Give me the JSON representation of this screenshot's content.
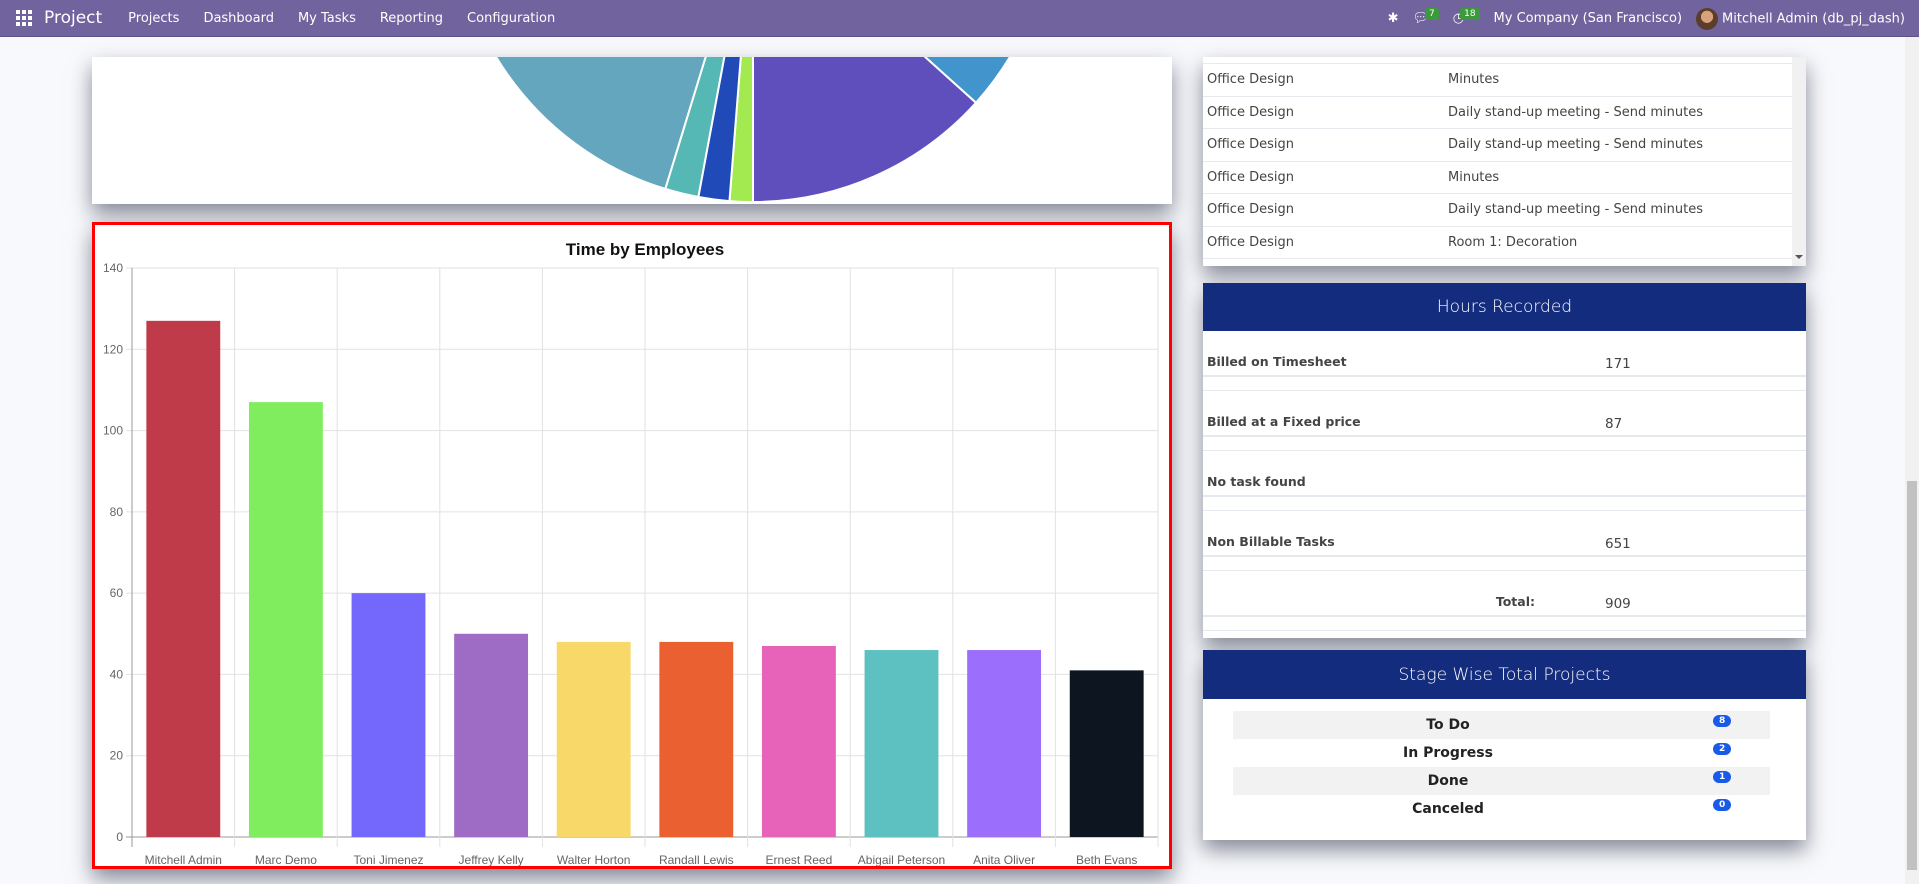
{
  "navbar": {
    "app": "Project",
    "menu": [
      "Projects",
      "Dashboard",
      "My Tasks",
      "Reporting",
      "Configuration"
    ],
    "messages_count": "7",
    "activities_count": "18",
    "company": "My Company (San Francisco)",
    "user": "Mitchell Admin (db_pj_dash)"
  },
  "pie": {
    "colors": [
      "#4195cc",
      "#5e4fbc",
      "#a2ea4f",
      "#1f4ab8",
      "#55b8b5",
      "#64a6bd"
    ]
  },
  "tasks_table": {
    "rows": [
      [
        "Office Design",
        "Minutes"
      ],
      [
        "Office Design",
        "Daily stand-up meeting - Send minutes"
      ],
      [
        "Office Design",
        "Daily stand-up meeting - Send minutes"
      ],
      [
        "Office Design",
        "Minutes"
      ],
      [
        "Office Design",
        "Daily stand-up meeting - Send minutes"
      ],
      [
        "Office Design",
        "Room 1: Decoration"
      ]
    ]
  },
  "hours": {
    "title": "Hours Recorded",
    "rows": [
      {
        "label": "Billed on Timesheet",
        "value": "171"
      },
      {
        "label": "Billed at a Fixed price",
        "value": "87"
      },
      {
        "label": "No task found",
        "value": ""
      },
      {
        "label": "Non Billable Tasks",
        "value": "651"
      }
    ],
    "total_label": "Total:",
    "total": "909"
  },
  "stages": {
    "title": "Stage Wise Total Projects",
    "rows": [
      {
        "label": "To Do",
        "count": "8"
      },
      {
        "label": "In Progress",
        "count": "2"
      },
      {
        "label": "Done",
        "count": "1"
      },
      {
        "label": "Canceled",
        "count": "0"
      }
    ]
  },
  "chart_data": {
    "type": "bar",
    "title": "Time by Employees",
    "categories": [
      "Mitchell Admin",
      "Marc Demo",
      "Toni Jimenez",
      "Jeffrey Kelly",
      "Walter Horton",
      "Randall Lewis",
      "Ernest Reed",
      "Abigail Peterson",
      "Anita Oliver",
      "Beth Evans"
    ],
    "values": [
      127,
      107,
      60,
      50,
      48,
      48,
      47,
      46,
      46,
      41
    ],
    "colors": [
      "#c03b4a",
      "#7fed5e",
      "#7368fb",
      "#9e6bc5",
      "#f8d869",
      "#ea6030",
      "#e762b9",
      "#5cc1c0",
      "#9c6efc",
      "#0c1520"
    ],
    "ylim": [
      0,
      140
    ],
    "yticks": [
      0,
      20,
      40,
      60,
      80,
      100,
      120,
      140
    ],
    "xlabel": "",
    "ylabel": ""
  }
}
